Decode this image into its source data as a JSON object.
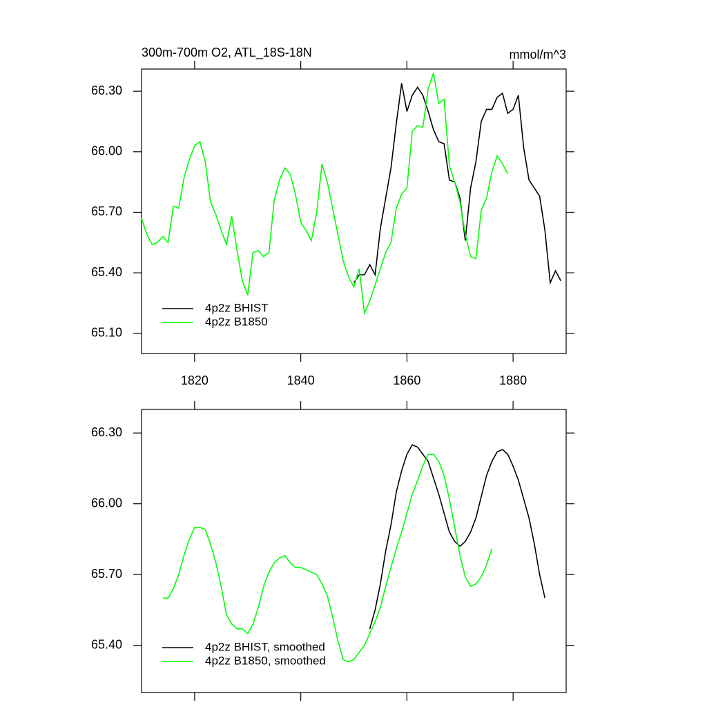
{
  "chart_data": [
    {
      "type": "line",
      "title": "300m-700m O2, ATL_18S-18N",
      "unit_label": "mmol/m^3",
      "xlim": [
        1810,
        1890
      ],
      "xticks": [
        1820,
        1840,
        1860,
        1880
      ],
      "xtick_labels": true,
      "ylim": [
        65.0,
        66.41
      ],
      "yticks": [
        {
          "value": 65.1,
          "label": "65.10"
        },
        {
          "value": 65.4,
          "label": "65.40"
        },
        {
          "value": 65.7,
          "label": "65.70"
        },
        {
          "value": 66.0,
          "label": "66.00"
        },
        {
          "value": 66.3,
          "label": "66.30"
        }
      ],
      "legend": "lower left",
      "series": [
        {
          "name": "4p2z BHIST",
          "color": "#000000",
          "x": [
            1850,
            1851,
            1852,
            1853,
            1854,
            1855,
            1856,
            1857,
            1858,
            1859,
            1860,
            1861,
            1862,
            1863,
            1864,
            1865,
            1866,
            1867,
            1868,
            1869,
            1870,
            1871,
            1872,
            1873,
            1874,
            1875,
            1876,
            1877,
            1878,
            1879,
            1880,
            1881,
            1882,
            1883,
            1884,
            1885,
            1886,
            1887,
            1888,
            1889
          ],
          "values": [
            65.35,
            65.39,
            65.39,
            65.44,
            65.39,
            65.62,
            65.77,
            65.92,
            66.14,
            66.34,
            66.2,
            66.28,
            66.32,
            66.28,
            66.2,
            66.11,
            66.05,
            66.04,
            65.86,
            65.85,
            65.77,
            65.56,
            65.82,
            65.95,
            66.15,
            66.21,
            66.21,
            66.27,
            66.29,
            66.19,
            66.21,
            66.28,
            66.02,
            65.86,
            65.82,
            65.78,
            65.61,
            65.35,
            65.41,
            65.36
          ]
        },
        {
          "name": "4p2z B1850",
          "color": "#00ff00",
          "x": [
            1810,
            1811,
            1812,
            1813,
            1814,
            1815,
            1816,
            1817,
            1818,
            1819,
            1820,
            1821,
            1822,
            1823,
            1824,
            1825,
            1826,
            1827,
            1828,
            1829,
            1830,
            1831,
            1832,
            1833,
            1834,
            1835,
            1836,
            1837,
            1838,
            1839,
            1840,
            1841,
            1842,
            1843,
            1844,
            1845,
            1846,
            1847,
            1848,
            1849,
            1850,
            1851,
            1852,
            1853,
            1854,
            1855,
            1856,
            1857,
            1858,
            1859,
            1860,
            1861,
            1862,
            1863,
            1864,
            1865,
            1866,
            1867,
            1868,
            1869,
            1870,
            1871,
            1872,
            1873,
            1874,
            1875,
            1876,
            1877,
            1878,
            1879
          ],
          "values": [
            65.67,
            65.59,
            65.54,
            65.55,
            65.58,
            65.55,
            65.73,
            65.72,
            65.87,
            65.96,
            66.03,
            66.05,
            65.95,
            65.75,
            65.69,
            65.61,
            65.54,
            65.68,
            65.51,
            65.36,
            65.29,
            65.5,
            65.51,
            65.48,
            65.5,
            65.76,
            65.86,
            65.92,
            65.89,
            65.79,
            65.65,
            65.61,
            65.56,
            65.7,
            65.94,
            65.85,
            65.72,
            65.59,
            65.46,
            65.38,
            65.33,
            65.42,
            65.2,
            65.26,
            65.34,
            65.42,
            65.5,
            65.55,
            65.72,
            65.79,
            65.82,
            66.1,
            66.13,
            66.12,
            66.31,
            66.39,
            66.24,
            66.26,
            65.93,
            65.85,
            65.75,
            65.59,
            65.48,
            65.47,
            65.71,
            65.77,
            65.9,
            65.98,
            65.94,
            65.89
          ]
        }
      ]
    },
    {
      "type": "line",
      "xlim": [
        1810,
        1890
      ],
      "xticks": [
        1820,
        1840,
        1860,
        1880
      ],
      "xtick_labels": false,
      "ylim": [
        65.2,
        66.4
      ],
      "yticks": [
        {
          "value": 65.4,
          "label": "65.40"
        },
        {
          "value": 65.7,
          "label": "65.70"
        },
        {
          "value": 66.0,
          "label": "66.00"
        },
        {
          "value": 66.3,
          "label": "66.30"
        }
      ],
      "legend": "lower left",
      "series": [
        {
          "name": "4p2z BHIST, smoothed",
          "color": "#000000",
          "x": [
            1853,
            1854,
            1855,
            1856,
            1857,
            1858,
            1859,
            1860,
            1861,
            1862,
            1863,
            1864,
            1865,
            1866,
            1867,
            1868,
            1869,
            1870,
            1871,
            1872,
            1873,
            1874,
            1875,
            1876,
            1877,
            1878,
            1879,
            1880,
            1881,
            1882,
            1883,
            1884,
            1885,
            1886
          ],
          "values": [
            65.47,
            65.55,
            65.66,
            65.8,
            65.91,
            66.05,
            66.14,
            66.21,
            66.25,
            66.24,
            66.21,
            66.18,
            66.11,
            66.04,
            65.96,
            65.88,
            65.84,
            65.82,
            65.84,
            65.88,
            65.94,
            66.03,
            66.12,
            66.18,
            66.22,
            66.23,
            66.21,
            66.16,
            66.1,
            66.02,
            65.94,
            65.83,
            65.7,
            65.6
          ]
        },
        {
          "name": "4p2z B1850, smoothed",
          "color": "#00ff00",
          "x": [
            1814,
            1815,
            1816,
            1817,
            1818,
            1819,
            1820,
            1821,
            1822,
            1823,
            1824,
            1825,
            1826,
            1827,
            1828,
            1829,
            1830,
            1831,
            1832,
            1833,
            1834,
            1835,
            1836,
            1837,
            1838,
            1839,
            1840,
            1841,
            1842,
            1843,
            1844,
            1845,
            1846,
            1847,
            1848,
            1849,
            1850,
            1851,
            1852,
            1853,
            1854,
            1855,
            1856,
            1857,
            1858,
            1859,
            1860,
            1861,
            1862,
            1863,
            1864,
            1865,
            1866,
            1867,
            1868,
            1869,
            1870,
            1871,
            1872,
            1873,
            1874,
            1875,
            1876
          ],
          "values": [
            65.6,
            65.6,
            65.64,
            65.7,
            65.78,
            65.85,
            65.9,
            65.9,
            65.89,
            65.83,
            65.75,
            65.65,
            65.53,
            65.49,
            65.47,
            65.47,
            65.45,
            65.49,
            65.56,
            65.65,
            65.71,
            65.75,
            65.77,
            65.78,
            65.75,
            65.73,
            65.73,
            65.72,
            65.71,
            65.7,
            65.66,
            65.61,
            65.52,
            65.42,
            65.34,
            65.33,
            65.34,
            65.37,
            65.4,
            65.45,
            65.5,
            65.56,
            65.65,
            65.73,
            65.81,
            65.88,
            65.96,
            66.04,
            66.1,
            66.16,
            66.21,
            66.21,
            66.18,
            66.12,
            66.02,
            65.9,
            65.78,
            65.69,
            65.65,
            65.66,
            65.69,
            65.74,
            65.81
          ]
        }
      ]
    }
  ]
}
